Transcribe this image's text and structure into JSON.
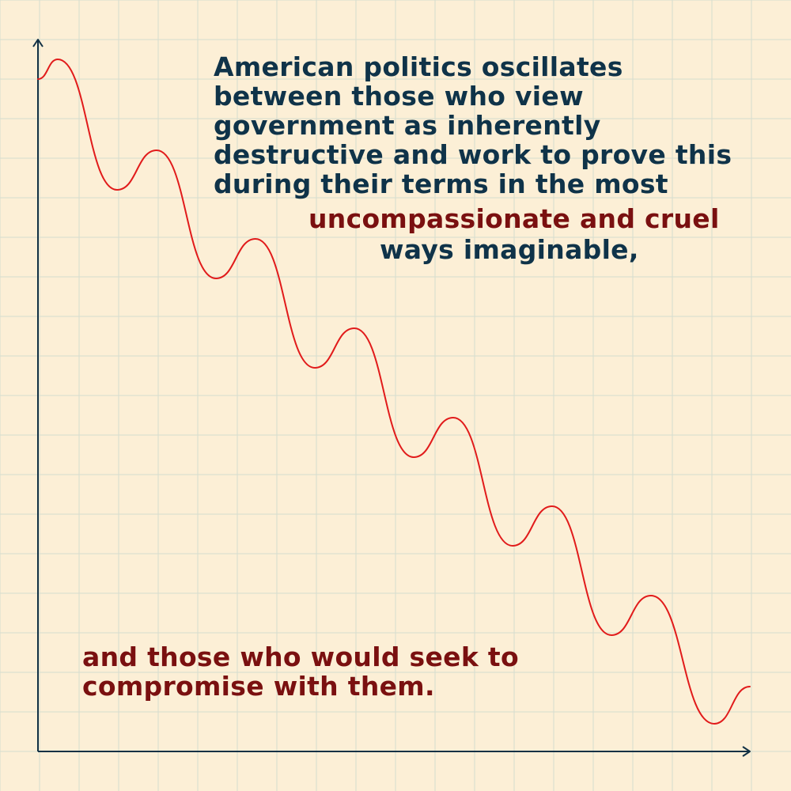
{
  "colors": {
    "background": "#fcefd6",
    "grid": "#d5dccf",
    "axis": "#123145",
    "curve": "#e11b1b",
    "text_primary": "#0f3349",
    "text_accent": "#7a1010"
  },
  "caption": {
    "top_lines": [
      "American politics oscillates",
      "between those who view",
      "government as inherently",
      "destructive and work to prove this",
      "during their terms in the most"
    ],
    "accent_line": "uncompassionate and cruel",
    "continuation_line": "ways imaginable,",
    "bottom_lines": [
      "and those who would seek to",
      "compromise with them."
    ]
  },
  "chart_data": {
    "type": "line",
    "title": "",
    "xlabel": "",
    "ylabel": "",
    "grid": true,
    "xlim": [
      0,
      9
    ],
    "ylim": [
      0,
      9
    ],
    "series": [
      {
        "values": [
          [
            0,
            8.5
          ],
          [
            0.25,
            8.75
          ],
          [
            1,
            7.1
          ],
          [
            1.5,
            7.6
          ],
          [
            2.25,
            5.98
          ],
          [
            2.75,
            6.48
          ],
          [
            3.5,
            4.85
          ],
          [
            4,
            5.35
          ],
          [
            4.75,
            3.72
          ],
          [
            5.25,
            4.22
          ],
          [
            6,
            2.6
          ],
          [
            6.5,
            3.1
          ],
          [
            7.25,
            1.47
          ],
          [
            7.75,
            1.97
          ],
          [
            8.55,
            0.35
          ],
          [
            9,
            0.82
          ]
        ]
      }
    ]
  }
}
